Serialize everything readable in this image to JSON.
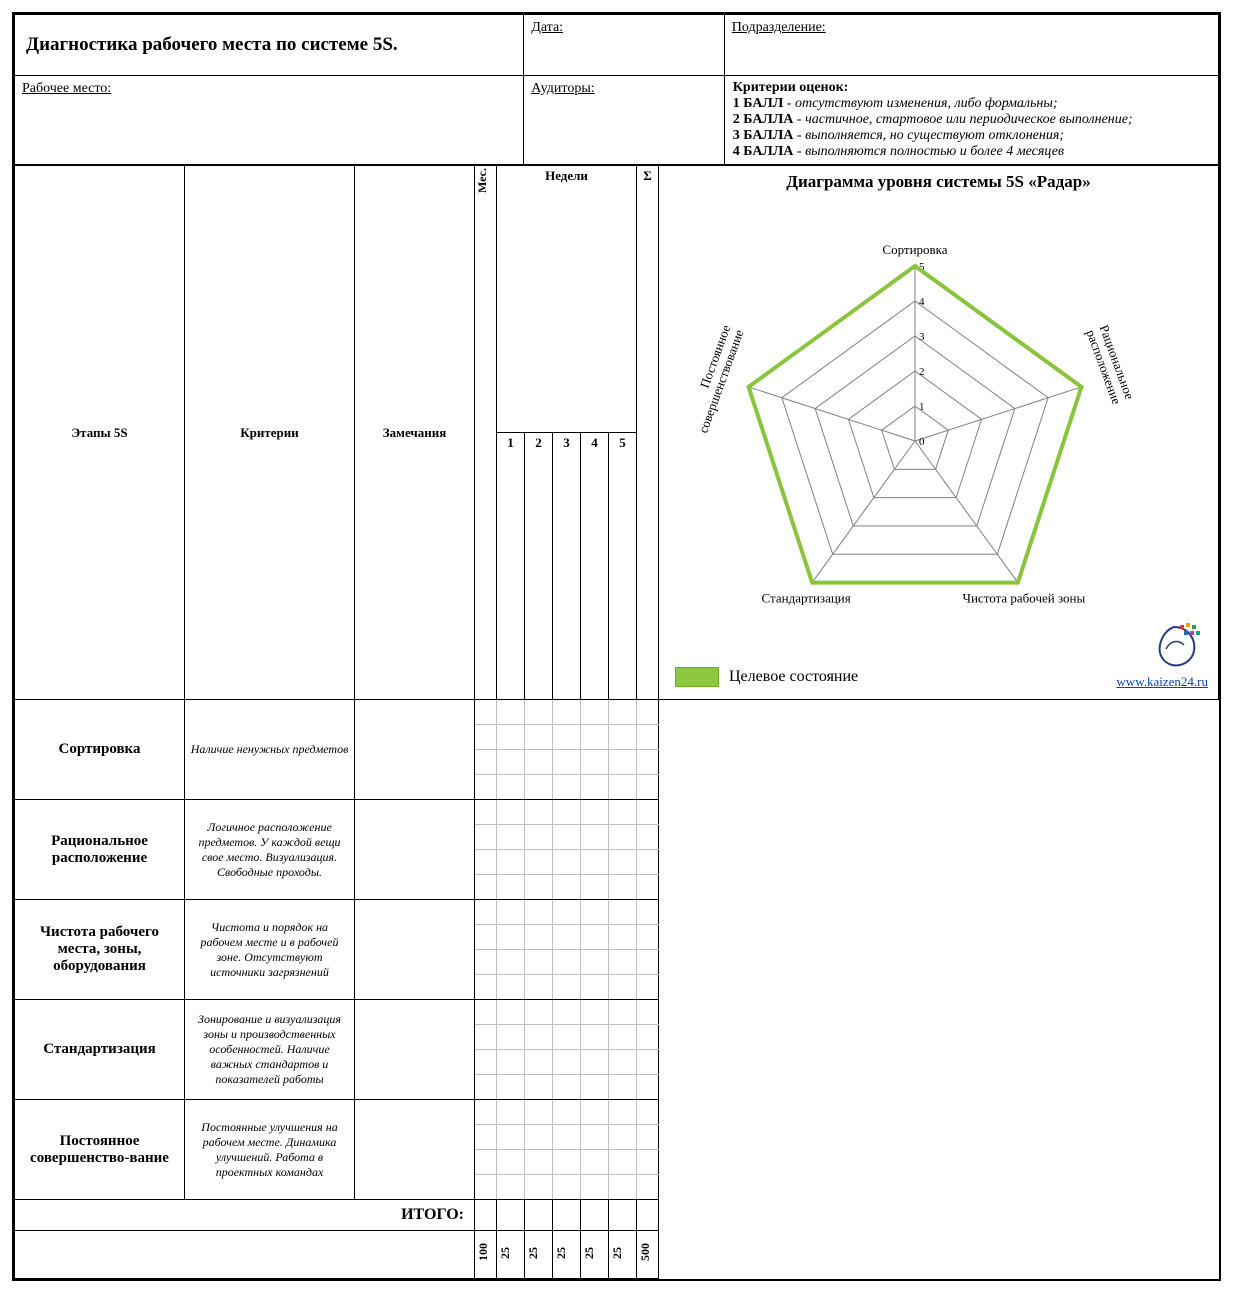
{
  "header": {
    "title": "Диагностика рабочего места по системе 5S.",
    "date_label": "Дата:",
    "dept_label": "Подразделение:",
    "workplace_label": "Рабочее место:",
    "auditors_label": "Аудиторы:"
  },
  "criteria_box": {
    "title": "Критерии оценок:",
    "line1_b": "1 БАЛЛ",
    "line1_i": " - отсутствуют изменения, либо формальны;",
    "line2_b": "2 БАЛЛА",
    "line2_i": " - частичное, стартовое или периодическое выполнение;",
    "line3_b": "3 БАЛЛА",
    "line3_i": " - выполняется, но существуют отклонения;",
    "line4_b": "4 БАЛЛА",
    "line4_i": " - выполняются полностью и более 4 месяцев"
  },
  "columns": {
    "stages": "Этапы 5S",
    "criteria": "Критерии",
    "notes": "Замечания",
    "month": "Мес.",
    "weeks": "Недели",
    "week_nums": [
      "1",
      "2",
      "3",
      "4",
      "5"
    ],
    "sum": "Σ"
  },
  "rows": [
    {
      "stage": "Сортировка",
      "criteria": "Наличие ненужных предметов"
    },
    {
      "stage": "Рациональное расположение",
      "criteria": "Логичное расположение предметов. У каждой вещи свое место. Визуализация. Свободные проходы."
    },
    {
      "stage": "Чистота рабочего места, зоны, оборудования",
      "criteria": "Чистота и порядок на рабочем месте и в рабочей зоне. Отсутствуют источники загрязнений"
    },
    {
      "stage": "Стандартизация",
      "criteria": "Зонирование и визуализация зоны и производственных особенностей. Наличие важных стандартов и показателей работы"
    },
    {
      "stage": "Постоянное совершенство-вание",
      "criteria": "Постоянные улучшения на рабочем месте. Динамика улучшений. Работа в проектных командах"
    }
  ],
  "totals": {
    "label": "ИТОГО:",
    "month_total": "100",
    "week_totals": [
      "25",
      "25",
      "25",
      "25",
      "25"
    ],
    "grand_total": "500"
  },
  "radar": {
    "title": "Диаграмма уровня системы 5S «Радар»",
    "axes": [
      "Сортировка",
      "Рациональное расположение",
      "Чистота рабочей зоны",
      "Стандартизация",
      "Постоянное совершенствование"
    ],
    "max": 5,
    "tick_labels": [
      "0",
      "1",
      "2",
      "3",
      "4",
      "5"
    ],
    "target_series": [
      5,
      5,
      5,
      5,
      5
    ],
    "ring_color": "#808080",
    "target_line_color": "#8ac43e",
    "target_line_width": 4,
    "target_fill_opacity": 0.0,
    "background": "#ffffff",
    "label_fontsize": 13,
    "tick_fontsize": 11,
    "legend_label": "Целевое состояние",
    "legend_fill": "#8dc63f",
    "legend_border": "#6ab023"
  },
  "footer": {
    "url_text": "www.kaizen24.ru"
  }
}
